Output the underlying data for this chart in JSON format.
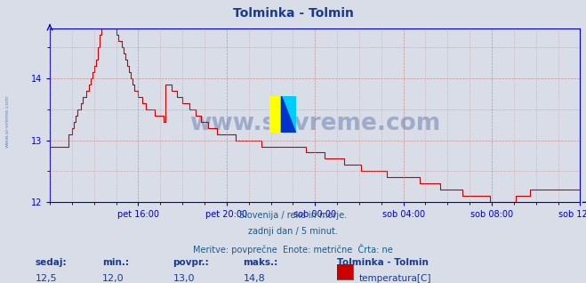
{
  "title": "Tolminka - Tolmin",
  "title_color": "#1a3a8a",
  "background_color": "#d8dde8",
  "plot_bg_color": "#d8dde8",
  "line_color": "#cc0000",
  "axis_color": "#0000cc",
  "grid_color": "#cc8888",
  "watermark_text": "www.si-vreme.com",
  "watermark_color": "#1a3a8a",
  "watermark_alpha": 0.3,
  "side_text": "www.si-vreme.com",
  "ylim": [
    12.0,
    14.8
  ],
  "yticks": [
    12,
    13,
    14
  ],
  "xlabel_ticks": [
    "pet 16:00",
    "pet 20:00",
    "sob 00:00",
    "sob 04:00",
    "sob 08:00",
    "sob 12:00"
  ],
  "footnote_lines": [
    "Slovenija / reke in morje.",
    "zadnji dan / 5 minut.",
    "Meritve: povprečne  Enote: metrične  Črta: ne"
  ],
  "footnote_color": "#1a5a8a",
  "stats_labels": [
    "sedaj:",
    "min.:",
    "povpr.:",
    "maks.:"
  ],
  "stats_values": [
    "12,5",
    "12,0",
    "13,0",
    "14,8"
  ],
  "stats_color": "#1a3a8a",
  "legend_title": "Tolminka - Tolmin",
  "legend_label": "temperatura[C]",
  "legend_color": "#cc0000",
  "temp_data": [
    12.9,
    12.9,
    12.9,
    12.9,
    12.9,
    12.9,
    12.9,
    12.9,
    12.9,
    12.9,
    13.1,
    13.1,
    13.2,
    13.3,
    13.4,
    13.5,
    13.5,
    13.6,
    13.7,
    13.7,
    13.8,
    13.9,
    14.0,
    14.1,
    14.2,
    14.3,
    14.5,
    14.7,
    14.8,
    14.8,
    14.8,
    14.8,
    14.8,
    14.8,
    14.8,
    14.8,
    14.7,
    14.6,
    14.6,
    14.5,
    14.4,
    14.3,
    14.2,
    14.1,
    14.0,
    13.9,
    13.8,
    13.8,
    13.7,
    13.7,
    13.6,
    13.6,
    13.5,
    13.5,
    13.5,
    13.5,
    13.5,
    13.4,
    13.4,
    13.4,
    13.4,
    13.4,
    13.3,
    13.9,
    13.9,
    13.9,
    13.8,
    13.8,
    13.8,
    13.7,
    13.7,
    13.7,
    13.6,
    13.6,
    13.6,
    13.6,
    13.5,
    13.5,
    13.5,
    13.4,
    13.4,
    13.4,
    13.3,
    13.3,
    13.3,
    13.3,
    13.2,
    13.2,
    13.2,
    13.2,
    13.2,
    13.1,
    13.1,
    13.1,
    13.1,
    13.1,
    13.1,
    13.1,
    13.1,
    13.1,
    13.1,
    13.0,
    13.0,
    13.0,
    13.0,
    13.0,
    13.0,
    13.0,
    13.0,
    13.0,
    13.0,
    13.0,
    13.0,
    13.0,
    13.0,
    12.9,
    12.9,
    12.9,
    12.9,
    12.9,
    12.9,
    12.9,
    12.9,
    12.9,
    12.9,
    12.9,
    12.9,
    12.9,
    12.9,
    12.9,
    12.9,
    12.9,
    12.9,
    12.9,
    12.9,
    12.9,
    12.9,
    12.9,
    12.9,
    12.8,
    12.8,
    12.8,
    12.8,
    12.8,
    12.8,
    12.8,
    12.8,
    12.8,
    12.8,
    12.7,
    12.7,
    12.7,
    12.7,
    12.7,
    12.7,
    12.7,
    12.7,
    12.7,
    12.7,
    12.7,
    12.6,
    12.6,
    12.6,
    12.6,
    12.6,
    12.6,
    12.6,
    12.6,
    12.6,
    12.5,
    12.5,
    12.5,
    12.5,
    12.5,
    12.5,
    12.5,
    12.5,
    12.5,
    12.5,
    12.5,
    12.5,
    12.5,
    12.5,
    12.4,
    12.4,
    12.4,
    12.4,
    12.4,
    12.4,
    12.4,
    12.4,
    12.4,
    12.4,
    12.4,
    12.4,
    12.4,
    12.4,
    12.4,
    12.4,
    12.4,
    12.4,
    12.3,
    12.3,
    12.3,
    12.3,
    12.3,
    12.3,
    12.3,
    12.3,
    12.3,
    12.3,
    12.3,
    12.2,
    12.2,
    12.2,
    12.2,
    12.2,
    12.2,
    12.2,
    12.2,
    12.2,
    12.2,
    12.2,
    12.2,
    12.1,
    12.1,
    12.1,
    12.1,
    12.1,
    12.1,
    12.1,
    12.1,
    12.1,
    12.1,
    12.1,
    12.1,
    12.1,
    12.1,
    12.1,
    12.0,
    12.0,
    12.0,
    12.0,
    12.0,
    12.0,
    12.0,
    12.0,
    12.0,
    12.0,
    12.0,
    12.0,
    12.0,
    12.0,
    12.1,
    12.1,
    12.1,
    12.1,
    12.1,
    12.1,
    12.1,
    12.1,
    12.2,
    12.2,
    12.2,
    12.2,
    12.2,
    12.2,
    12.2,
    12.2,
    12.2,
    12.2,
    12.2,
    12.2,
    12.2,
    12.2,
    12.2,
    12.2,
    12.2,
    12.2,
    12.2,
    12.2,
    12.2,
    12.2,
    12.2,
    12.2,
    12.2,
    12.2,
    12.2,
    12.2,
    12.2,
    12.3,
    12.3,
    12.4,
    12.5,
    12.5,
    12.5,
    12.5,
    12.5,
    12.5
  ]
}
